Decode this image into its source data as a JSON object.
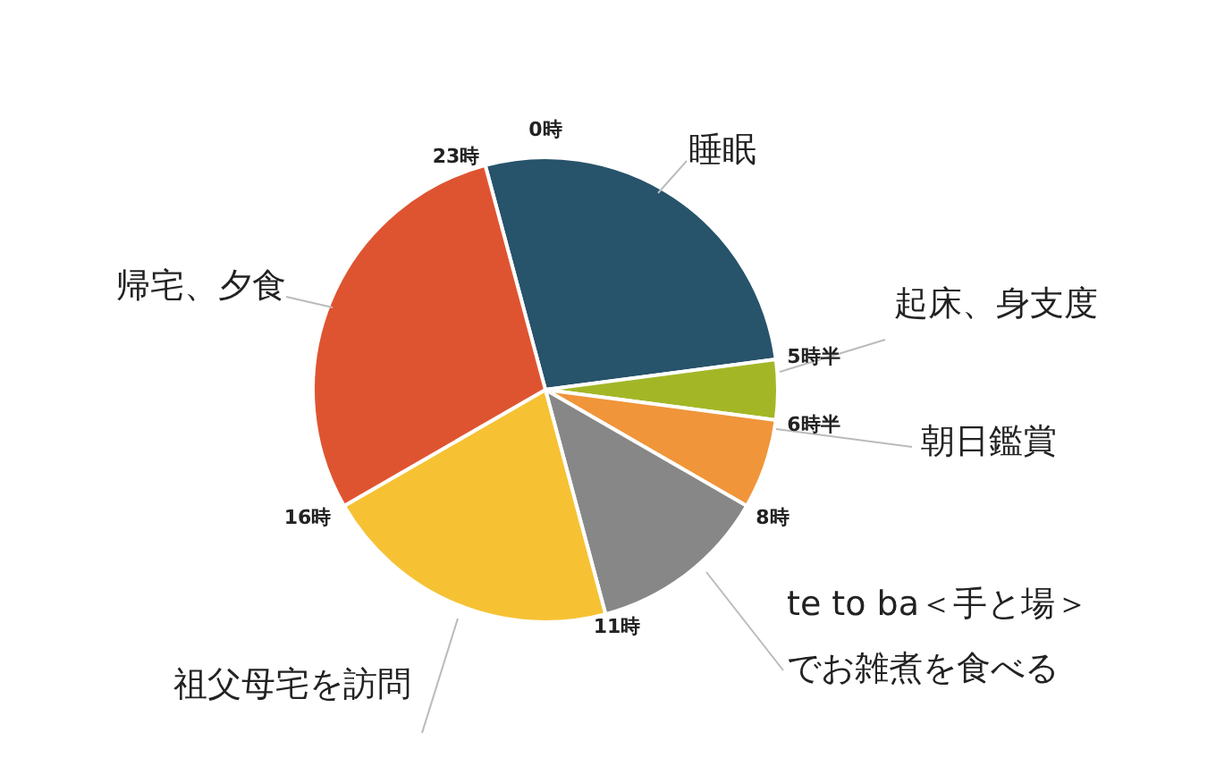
{
  "chart_data": {
    "type": "pie",
    "categories": [
      "睡眠",
      "起床、身支度",
      "朝日鑑賞",
      "te to ba＜手と場＞でお雑煮を食べる",
      "祖父母宅を訪問",
      "帰宅、夕食"
    ],
    "values": [
      27.08,
      4.17,
      6.25,
      12.5,
      20.83,
      29.17
    ],
    "colors": [
      "#27536b",
      "#a3b726",
      "#f0953a",
      "#878787",
      "#f6c234",
      "#df5430"
    ],
    "annotations": [
      "0時",
      "23時",
      "5時半",
      "6時半",
      "8時",
      "11時",
      "16時"
    ]
  }
}
